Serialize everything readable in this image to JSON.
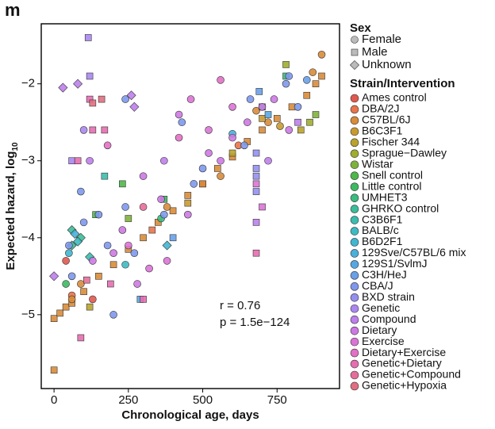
{
  "chart_data": {
    "type": "scatter",
    "panel_label": "m",
    "xlabel": "Chronological age, days",
    "ylabel": "Expected hazard, log",
    "ylabel_sub": "10",
    "xlim": [
      -43,
      960
    ],
    "ylim": [
      -5.96,
      -1.22
    ],
    "xticks": [
      0,
      250,
      500,
      750
    ],
    "yticks": [
      {
        "value": -5,
        "label": "−5"
      },
      {
        "value": -4,
        "label": "−4"
      },
      {
        "value": -3,
        "label": "−3"
      },
      {
        "value": -2,
        "label": "−2"
      }
    ],
    "annotations": [
      "r = 0.76",
      "p = 1.5e−124"
    ],
    "sex_legend": {
      "title": "Sex",
      "items": [
        "Female",
        "Male",
        "Unknown"
      ]
    },
    "legend_title": "Strain/Intervention",
    "series": [
      {
        "name": "Ames control",
        "color": "#e0584f",
        "x": [
          130,
          500,
          40
        ],
        "values": [
          -4.8,
          -3.3,
          -4.3
        ],
        "sex": [
          0,
          1,
          0
        ]
      },
      {
        "name": "DBA/2J",
        "color": "#e8744a",
        "x": [
          60,
          330,
          620
        ],
        "values": [
          -4.75,
          -3.9,
          -2.8
        ],
        "sex": [
          0,
          1,
          0
        ]
      },
      {
        "name": "C57BL/6J",
        "color": "#d98c3a",
        "x": [
          0,
          20,
          40,
          60,
          100,
          150,
          200,
          250,
          300,
          350,
          400,
          450,
          500,
          550,
          600,
          650,
          700,
          750,
          800,
          850,
          880,
          900,
          900,
          870,
          720,
          680,
          560,
          380,
          90,
          60,
          0
        ],
        "values": [
          -5.05,
          -4.98,
          -4.9,
          -4.85,
          -4.7,
          -4.5,
          -4.35,
          -4.15,
          -4.0,
          -3.8,
          -3.65,
          -3.45,
          -3.3,
          -3.1,
          -2.95,
          -2.75,
          -2.6,
          -2.45,
          -2.3,
          -2.15,
          -2.0,
          -1.9,
          -1.62,
          -1.85,
          -2.5,
          -2.35,
          -3.2,
          -3.6,
          -4.6,
          -4.8,
          -5.72
        ],
        "sex": [
          1,
          1,
          1,
          1,
          1,
          1,
          1,
          1,
          1,
          1,
          1,
          1,
          1,
          1,
          1,
          1,
          1,
          1,
          1,
          1,
          1,
          1,
          0,
          0,
          0,
          0,
          0,
          0,
          0,
          0,
          1
        ]
      },
      {
        "name": "B6C3F1",
        "color": "#c99a30",
        "x": [
          700,
          760,
          450
        ],
        "values": [
          -2.45,
          -2.55,
          -3.55
        ],
        "sex": [
          1,
          0,
          1
        ]
      },
      {
        "name": "Fischer 344",
        "color": "#b9a32e",
        "x": [
          600,
          830,
          120
        ],
        "values": [
          -2.9,
          -2.6,
          -4.9
        ],
        "sex": [
          1,
          1,
          1
        ]
      },
      {
        "name": "Sprague−Dawley",
        "color": "#9fae2f",
        "x": [
          860,
          780
        ],
        "values": [
          -2.5,
          -1.75
        ],
        "sex": [
          1,
          1
        ]
      },
      {
        "name": "Wistar",
        "color": "#7fb23a",
        "x": [
          880,
          250
        ],
        "values": [
          -2.4,
          -3.75
        ],
        "sex": [
          1,
          1
        ]
      },
      {
        "name": "Snell control",
        "color": "#4eb848",
        "x": [
          140,
          230
        ],
        "values": [
          -3.7,
          -3.3
        ],
        "sex": [
          1,
          1
        ]
      },
      {
        "name": "Little control",
        "color": "#3cba60",
        "x": [
          370,
          40
        ],
        "values": [
          -3.5,
          -4.6
        ],
        "sex": [
          1,
          0
        ]
      },
      {
        "name": "UMHET3",
        "color": "#3bbb7d",
        "x": [
          700,
          780,
          360
        ],
        "values": [
          -2.3,
          -1.9,
          -3.75
        ],
        "sex": [
          1,
          1,
          0
        ]
      },
      {
        "name": "GHRKO control",
        "color": "#3cbc99",
        "x": [
          60,
          60,
          90
        ],
        "values": [
          -4.1,
          -3.9,
          -4.0
        ],
        "sex": [
          2,
          2,
          2
        ]
      },
      {
        "name": "C3B6F1",
        "color": "#3bbcb0",
        "x": [
          170,
          120
        ],
        "values": [
          -3.2,
          -4.25
        ],
        "sex": [
          1,
          2
        ]
      },
      {
        "name": "BALB/c",
        "color": "#3dbac3",
        "x": [
          80,
          240
        ],
        "values": [
          -4.05,
          -4.35
        ],
        "sex": [
          2,
          0
        ]
      },
      {
        "name": "B6D2F1",
        "color": "#40b6d0",
        "x": [
          50,
          380
        ],
        "values": [
          -4.2,
          -4.1
        ],
        "sex": [
          0,
          2
        ]
      },
      {
        "name": "129Sve/C57BL/6 mix",
        "color": "#48b0db",
        "x": [
          70,
          600
        ],
        "values": [
          -3.95,
          -2.65
        ],
        "sex": [
          2,
          0
        ]
      },
      {
        "name": "129S1/SvlmJ",
        "color": "#56a8e3",
        "x": [
          290,
          720
        ],
        "values": [
          -4.8,
          -2.4
        ],
        "sex": [
          1,
          1
        ]
      },
      {
        "name": "C3H/HeJ",
        "color": "#69a0e8",
        "x": [
          690,
          400,
          850
        ],
        "values": [
          -2.1,
          -4.0,
          -1.95
        ],
        "sex": [
          1,
          1,
          0
        ]
      },
      {
        "name": "CBA/J",
        "color": "#7e98ec",
        "x": [
          100,
          150,
          180,
          240,
          270,
          370,
          470,
          500,
          640,
          660,
          780,
          790,
          60,
          90,
          50,
          200,
          430,
          240,
          820
        ],
        "values": [
          -3.8,
          -3.7,
          -4.1,
          -3.6,
          -4.2,
          -3.7,
          -3.3,
          -3.1,
          -2.8,
          -2.2,
          -2.0,
          -1.9,
          -4.5,
          -3.4,
          -4.1,
          -5.0,
          -2.5,
          -2.2,
          -2.3
        ],
        "sex": [
          0,
          0,
          0,
          0,
          0,
          0,
          0,
          0,
          0,
          0,
          0,
          0,
          0,
          0,
          0,
          0,
          0,
          0,
          0
        ]
      },
      {
        "name": "BXD strain",
        "color": "#9590ef",
        "x": [
          680,
          680,
          680,
          680
        ],
        "values": [
          -3.1,
          -2.9,
          -3.2,
          -3.4
        ],
        "sex": [
          1,
          1,
          1,
          1
        ]
      },
      {
        "name": "Genetic",
        "color": "#aa87ef",
        "x": [
          115,
          120,
          60,
          100
        ],
        "values": [
          -1.4,
          -1.9,
          -3.0,
          -2.6
        ],
        "sex": [
          1,
          1,
          1,
          0
        ]
      },
      {
        "name": "Compound",
        "color": "#bd7feb",
        "x": [
          120,
          80,
          270,
          370,
          680,
          720,
          820,
          260,
          30,
          0
        ],
        "values": [
          -3.0,
          -2.0,
          -2.3,
          -3.0,
          -3.8,
          -3.0,
          -2.5,
          -2.15,
          -2.05,
          -4.5
        ],
        "sex": [
          0,
          2,
          2,
          0,
          1,
          0,
          1,
          2,
          2,
          2
        ]
      },
      {
        "name": "Dietary",
        "color": "#cd79e3",
        "x": [
          130,
          200,
          230,
          280,
          360,
          450,
          520,
          560,
          600,
          650,
          700,
          740,
          790,
          420,
          300
        ],
        "values": [
          -4.3,
          -4.2,
          -3.9,
          -4.6,
          -3.5,
          -3.7,
          -2.9,
          -3.0,
          -2.7,
          -2.5,
          -2.3,
          -2.2,
          -2.6,
          -2.4,
          -3.2
        ],
        "sex": [
          0,
          0,
          0,
          0,
          0,
          0,
          0,
          0,
          0,
          0,
          0,
          0,
          0,
          0,
          0
        ]
      },
      {
        "name": "Exercise",
        "color": "#da74d6",
        "x": [
          250,
          320,
          380,
          460,
          520,
          600,
          680,
          700
        ],
        "values": [
          -4.1,
          -4.4,
          -4.3,
          -2.2,
          -2.6,
          -2.3,
          -3.3,
          -3.6
        ],
        "sex": [
          0,
          0,
          0,
          0,
          0,
          0,
          1,
          1
        ]
      },
      {
        "name": "Dietary+Exercise",
        "color": "#e270c5",
        "x": [
          180,
          420,
          560
        ],
        "values": [
          -2.8,
          -2.7,
          -1.95
        ],
        "sex": [
          0,
          0,
          0
        ]
      },
      {
        "name": "Genetic+Dietary",
        "color": "#e56eb0",
        "x": [
          120,
          130,
          170,
          190,
          300,
          680,
          90,
          80
        ],
        "values": [
          -2.2,
          -2.6,
          -2.6,
          -4.6,
          -4.8,
          -4.2,
          -5.3,
          -3.0
        ],
        "sex": [
          1,
          1,
          1,
          1,
          1,
          1,
          1,
          1
        ]
      },
      {
        "name": "Genetic+Compound",
        "color": "#e56e99",
        "x": [
          110,
          300
        ],
        "values": [
          -4.55,
          -3.6
        ],
        "sex": [
          1,
          0
        ]
      },
      {
        "name": "Genetic+Hypoxia",
        "color": "#e16f81",
        "x": [
          160,
          130
        ],
        "values": [
          -2.2,
          -2.25
        ],
        "sex": [
          1,
          1
        ]
      }
    ]
  }
}
